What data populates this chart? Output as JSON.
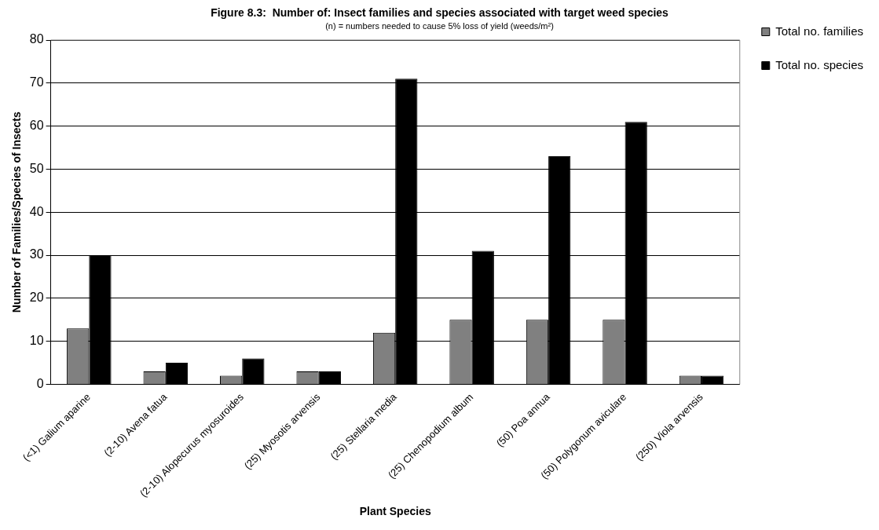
{
  "chart_data": {
    "type": "bar",
    "title": "Figure 8.3:  Number of: Insect families and species associated with target weed species",
    "subtitle": "(n) = numbers needed to cause 5% loss of yield (weeds/m²)",
    "xlabel": "Plant Species",
    "ylabel": "Number of Families/Species of Insects",
    "categories": [
      "(<1) Galium aparine",
      "(2-10) Avena fatua",
      "(2-10) Alopecurus myosuroides",
      "(25) Myosotis arvensis",
      "(25) Stellaria media",
      "(25) Chenopodium album",
      "(50) Poa annua",
      "(50) Polygonum aviculare",
      "(250) Viola arvensis"
    ],
    "series": [
      {
        "name": "Total no. families",
        "color": "#808080",
        "values": [
          13,
          3,
          2,
          3,
          12,
          15,
          15,
          15,
          2
        ]
      },
      {
        "name": "Total no. species",
        "color": "#000000",
        "values": [
          30,
          5,
          6,
          3,
          71,
          31,
          53,
          61,
          2
        ]
      }
    ],
    "ylim": [
      0,
      80
    ],
    "yticks": [
      0,
      10,
      20,
      30,
      40,
      50,
      60,
      70,
      80
    ],
    "grid": "y",
    "legend": "right"
  }
}
